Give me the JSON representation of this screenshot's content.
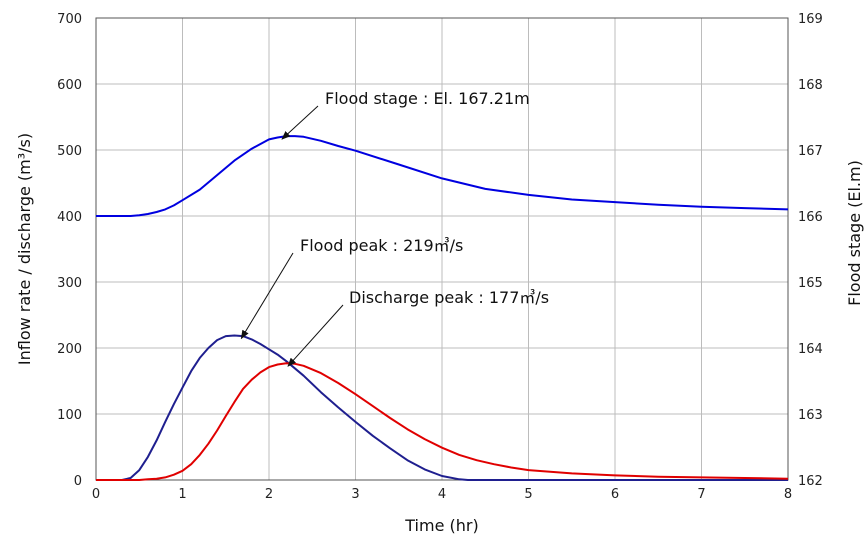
{
  "chart_data": {
    "type": "line",
    "title": "",
    "xlabel": "Time (hr)",
    "ylabel": "Inflow rate / discharge (m³/s)",
    "y2label": "Flood stage (El.m)",
    "xlim": [
      0,
      8
    ],
    "ylim": [
      0,
      700
    ],
    "y2lim": [
      162,
      169
    ],
    "x_ticks": [
      0,
      1,
      2,
      3,
      4,
      5,
      6,
      7,
      8
    ],
    "y_ticks": [
      0,
      100,
      200,
      300,
      400,
      500,
      600,
      700
    ],
    "y2_ticks": [
      162,
      163,
      164,
      165,
      166,
      167,
      168,
      169
    ],
    "grid": true,
    "series": [
      {
        "color": "#1f1f8f",
        "axis": "left",
        "x": [
          0,
          0.3,
          0.4,
          0.5,
          0.6,
          0.7,
          0.8,
          0.9,
          1.0,
          1.1,
          1.2,
          1.3,
          1.4,
          1.5,
          1.6,
          1.7,
          1.8,
          1.9,
          2.0,
          2.1,
          2.2,
          2.4,
          2.6,
          2.8,
          3.0,
          3.2,
          3.4,
          3.6,
          3.8,
          4.0,
          4.2,
          4.3,
          8.0
        ],
        "y": [
          0,
          0,
          3,
          15,
          35,
          60,
          88,
          115,
          140,
          165,
          185,
          200,
          212,
          218,
          219,
          218,
          213,
          206,
          198,
          190,
          180,
          158,
          133,
          110,
          88,
          67,
          48,
          30,
          16,
          6,
          1,
          0,
          0
        ]
      },
      {
        "color": "#e00000",
        "axis": "left",
        "x": [
          0,
          0.5,
          0.6,
          0.7,
          0.8,
          0.9,
          1.0,
          1.1,
          1.2,
          1.3,
          1.4,
          1.5,
          1.6,
          1.7,
          1.8,
          1.9,
          2.0,
          2.1,
          2.2,
          2.3,
          2.4,
          2.6,
          2.8,
          3.0,
          3.2,
          3.4,
          3.6,
          3.8,
          4.0,
          4.2,
          4.4,
          4.6,
          4.8,
          5.0,
          5.5,
          6.0,
          6.5,
          7.0,
          7.5,
          8.0
        ],
        "y": [
          0,
          0,
          1,
          2,
          4,
          8,
          14,
          24,
          38,
          55,
          75,
          97,
          118,
          138,
          152,
          163,
          171,
          175,
          177,
          176,
          173,
          162,
          147,
          130,
          112,
          94,
          77,
          62,
          49,
          38,
          30,
          24,
          19,
          15,
          10,
          7,
          5,
          4,
          3,
          2
        ]
      },
      {
        "color": "#0000e0",
        "axis": "right",
        "x": [
          0,
          0.4,
          0.5,
          0.6,
          0.7,
          0.8,
          0.9,
          1.0,
          1.2,
          1.4,
          1.6,
          1.8,
          2.0,
          2.1,
          2.2,
          2.3,
          2.4,
          2.6,
          2.8,
          3.0,
          3.5,
          4.0,
          4.5,
          5.0,
          5.5,
          6.0,
          6.5,
          7.0,
          7.5,
          8.0
        ],
        "y": [
          166.0,
          166.0,
          166.01,
          166.03,
          166.06,
          166.1,
          166.16,
          166.24,
          166.4,
          166.62,
          166.84,
          167.02,
          167.16,
          167.19,
          167.21,
          167.21,
          167.2,
          167.14,
          167.06,
          166.99,
          166.78,
          166.57,
          166.41,
          166.32,
          166.25,
          166.21,
          166.17,
          166.14,
          166.12,
          166.1
        ]
      }
    ],
    "annotations": [
      {
        "text": "Flood stage : El. 167.21m",
        "target_x": 2.15,
        "target_axis": "right",
        "target_y": 167.21
      },
      {
        "text": "Flood peak : 219㎥/s",
        "target_x": 1.68,
        "target_axis": "left",
        "target_y": 219
      },
      {
        "text": "Discharge peak : 177㎥/s",
        "target_x": 2.22,
        "target_axis": "left",
        "target_y": 177
      }
    ]
  }
}
